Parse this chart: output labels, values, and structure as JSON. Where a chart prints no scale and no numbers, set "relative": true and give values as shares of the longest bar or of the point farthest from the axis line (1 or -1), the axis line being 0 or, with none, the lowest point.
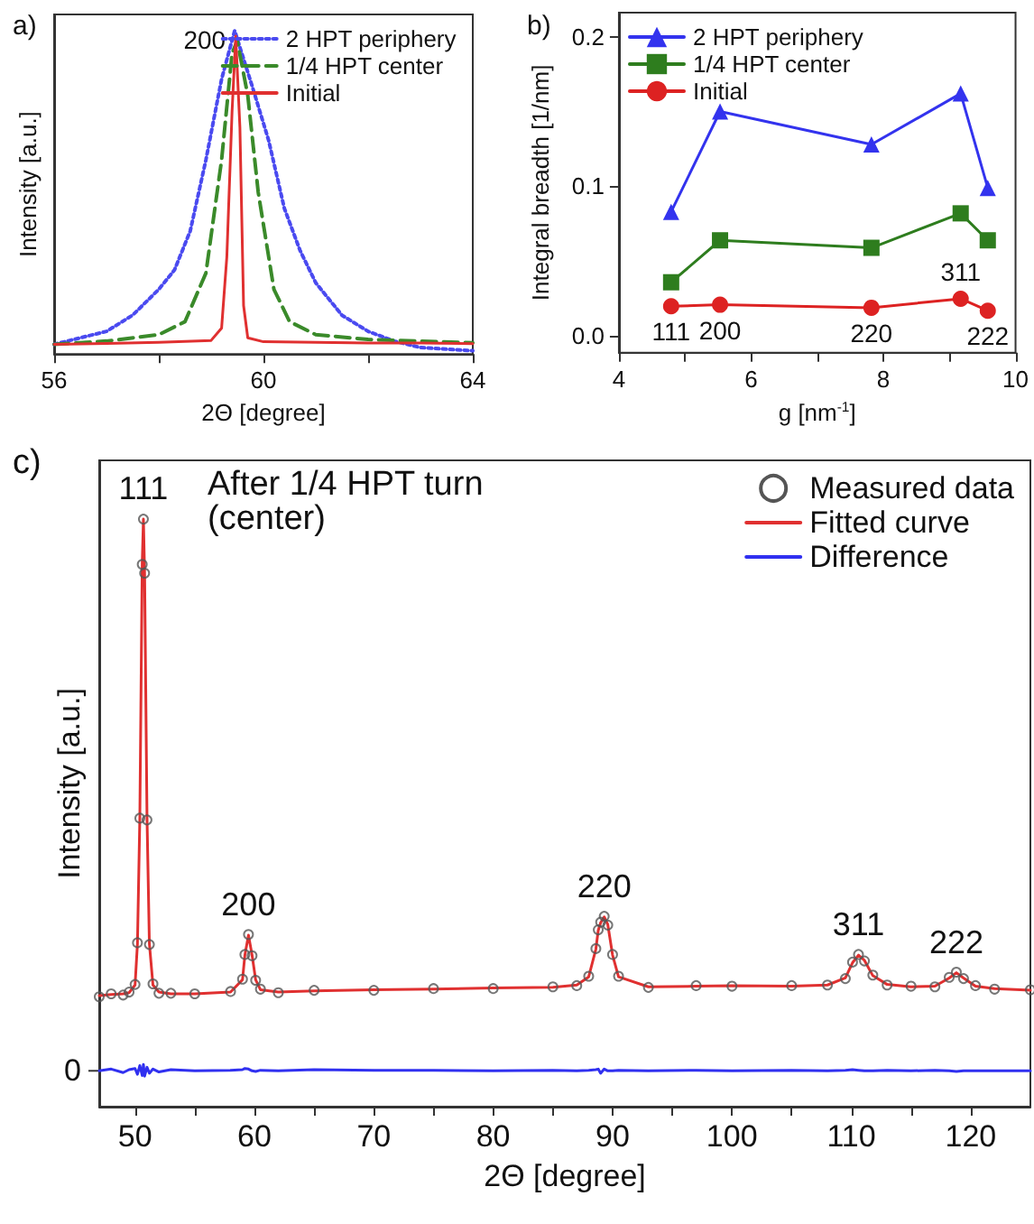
{
  "chart_data": [
    {
      "type": "line",
      "title": "a)",
      "xlabel": "2Θ [degree]",
      "ylabel": "Intensity [a.u.]",
      "relative": true,
      "xlim": [
        56,
        64
      ],
      "xticks": [
        56,
        {
          "value": 58,
          "label": null
        },
        60,
        {
          "value": 62,
          "label": null
        },
        64
      ],
      "legend": "top right",
      "annotations": [
        {
          "text": "200",
          "x": 59.45,
          "y": 1.0
        }
      ],
      "series": [
        {
          "name": "2 HPT periphery",
          "color": "#4a4af0",
          "line_style": "dotted",
          "x": [
            56,
            56.5,
            57,
            57.5,
            58,
            58.3,
            58.6,
            58.9,
            59.2,
            59.45,
            59.8,
            60.1,
            60.4,
            60.7,
            61,
            61.5,
            62,
            62.5,
            63,
            64
          ],
          "values": [
            0.03,
            0.05,
            0.07,
            0.12,
            0.2,
            0.26,
            0.38,
            0.6,
            0.85,
            1.0,
            0.82,
            0.66,
            0.45,
            0.32,
            0.22,
            0.12,
            0.07,
            0.04,
            0.02,
            0.01
          ]
        },
        {
          "name": "1/4 HPT center",
          "color": "#3a8a2a",
          "line_style": "dashed",
          "x": [
            56,
            57,
            58,
            58.5,
            58.9,
            59.2,
            59.4,
            59.5,
            59.7,
            59.9,
            60.2,
            60.5,
            61,
            62,
            63,
            64
          ],
          "values": [
            0.03,
            0.04,
            0.06,
            0.1,
            0.25,
            0.6,
            0.93,
            0.968,
            0.8,
            0.5,
            0.2,
            0.1,
            0.06,
            0.045,
            0.04,
            0.035
          ]
        },
        {
          "name": "Initial",
          "color": "#e03030",
          "line_style": "solid",
          "x": [
            56,
            57,
            58,
            59,
            59.2,
            59.3,
            59.4,
            59.47,
            59.55,
            59.62,
            59.7,
            60,
            61,
            62,
            63,
            64
          ],
          "values": [
            0.03,
            0.033,
            0.036,
            0.042,
            0.08,
            0.3,
            0.75,
            0.983,
            0.7,
            0.15,
            0.05,
            0.038,
            0.036,
            0.034,
            0.034,
            0.032
          ]
        }
      ]
    },
    {
      "type": "line",
      "title": "b)",
      "xlabel": "g [nm$^{-1}$]",
      "ylabel": "Integral breadth [1/nm]",
      "xlim": [
        4,
        10
      ],
      "xticks": [
        4,
        {
          "value": 5,
          "label": null
        },
        6,
        {
          "value": 7,
          "label": null
        },
        8,
        {
          "value": 9,
          "label": null
        },
        10
      ],
      "ylim": [
        -0.011,
        0.216
      ],
      "yticks": [
        {
          "value": 0,
          "label": "0.0"
        },
        0.1,
        0.2
      ],
      "legend": "top left",
      "x": [
        4.79,
        5.53,
        7.82,
        9.17,
        9.58
      ],
      "annotations": [
        {
          "text": "111",
          "x": 4.79,
          "y": 0.02
        },
        {
          "text": "200",
          "x": 5.53,
          "y": 0.021
        },
        {
          "text": "220",
          "x": 7.82,
          "y": 0.019
        },
        {
          "text": "311",
          "x": 9.17,
          "y": 0.025
        },
        {
          "text": "222",
          "x": 9.58,
          "y": 0.017
        }
      ],
      "series": [
        {
          "name": "2 HPT periphery",
          "color": "#3333ee",
          "marker": "triangle",
          "values": [
            0.083,
            0.15,
            0.128,
            0.162,
            0.099
          ]
        },
        {
          "name": "1/4 HPT center",
          "color": "#2e7d1e",
          "marker": "square",
          "values": [
            0.036,
            0.064,
            0.059,
            0.082,
            0.064
          ]
        },
        {
          "name": "Initial",
          "color": "#dd2222",
          "marker": "circle",
          "values": [
            0.02,
            0.021,
            0.019,
            0.025,
            0.017
          ]
        }
      ]
    },
    {
      "type": "line",
      "title": "c)",
      "xlabel": "2Θ [degree]",
      "ylabel": "Intensity [a.u.]",
      "relative": true,
      "xlim": [
        47,
        125
      ],
      "xticks": [
        50,
        {
          "value": 55,
          "label": null
        },
        60,
        {
          "value": 65,
          "label": null
        },
        70,
        {
          "value": 75,
          "label": null
        },
        80,
        {
          "value": 85,
          "label": null
        },
        90,
        {
          "value": 95,
          "label": null
        },
        100,
        {
          "value": 105,
          "label": null
        },
        110,
        {
          "value": 115,
          "label": null
        },
        120
      ],
      "ref_lines": [
        {
          "axis": "y",
          "value": 0.061,
          "label": "0"
        }
      ],
      "legend": "top right",
      "x": [
        47,
        48,
        49,
        49.5,
        50,
        50.2,
        50.4,
        50.6,
        50.7,
        50.8,
        51,
        51.2,
        51.5,
        52,
        53,
        55,
        58,
        59,
        59.2,
        59.5,
        59.8,
        60.1,
        60.5,
        62,
        65,
        70,
        75,
        80,
        85,
        87,
        88,
        88.6,
        88.8,
        89,
        89.3,
        89.6,
        90,
        90.5,
        93,
        97,
        100,
        105,
        108,
        109.5,
        110.1,
        110.6,
        111.1,
        111.8,
        113,
        115,
        117,
        118.2,
        118.8,
        119.4,
        120.4,
        122,
        125
      ],
      "annotations": [
        "After 1/4 HPT turn\n(center)",
        {
          "text": "111",
          "x": 50.7,
          "y": 1.0
        },
        {
          "text": "200",
          "x": 59.5,
          "y": 0.292
        },
        {
          "text": "220",
          "x": 89.3,
          "y": 0.323
        },
        {
          "text": "311",
          "x": 110.6,
          "y": 0.258
        },
        {
          "text": "222",
          "x": 118.8,
          "y": 0.228
        }
      ],
      "series": [
        {
          "name": "Measured data",
          "type": "scatter",
          "color": "#555555",
          "marker": "circle",
          "values": [
            0.187,
            0.192,
            0.19,
            0.195,
            0.208,
            0.279,
            0.491,
            0.923,
            1.0,
            0.908,
            0.488,
            0.276,
            0.209,
            0.193,
            0.193,
            0.192,
            0.196,
            0.217,
            0.259,
            0.293,
            0.257,
            0.215,
            0.2,
            0.194,
            0.198,
            0.198,
            0.201,
            0.201,
            0.204,
            0.206,
            0.222,
            0.269,
            0.301,
            0.314,
            0.324,
            0.309,
            0.259,
            0.222,
            0.203,
            0.206,
            0.205,
            0.206,
            0.207,
            0.218,
            0.246,
            0.259,
            0.248,
            0.224,
            0.207,
            0.205,
            0.204,
            0.22,
            0.229,
            0.218,
            0.206,
            0.2,
            0.199
          ]
        },
        {
          "name": "Fitted curve",
          "color": "#e03030",
          "marker": "none",
          "values": [
            0.189,
            0.191,
            0.192,
            0.194,
            0.207,
            0.277,
            0.493,
            0.925,
            1.0,
            0.906,
            0.493,
            0.277,
            0.207,
            0.195,
            0.192,
            0.192,
            0.195,
            0.216,
            0.258,
            0.292,
            0.258,
            0.216,
            0.199,
            0.195,
            0.197,
            0.199,
            0.2,
            0.202,
            0.203,
            0.207,
            0.221,
            0.268,
            0.3,
            0.313,
            0.323,
            0.31,
            0.258,
            0.221,
            0.204,
            0.205,
            0.206,
            0.205,
            0.207,
            0.219,
            0.245,
            0.258,
            0.249,
            0.223,
            0.208,
            0.204,
            0.205,
            0.219,
            0.228,
            0.219,
            0.205,
            0.201,
            0.198
          ]
        },
        {
          "name": "Difference",
          "color": "#3030f0",
          "marker": "none",
          "values": [
            0.061,
            0.064,
            0.058,
            0.063,
            0.065,
            0.055,
            0.07,
            0.053,
            0.072,
            0.052,
            0.067,
            0.057,
            0.064,
            0.059,
            0.063,
            0.061,
            0.062,
            0.063,
            0.065,
            0.064,
            0.061,
            0.06,
            0.062,
            0.061,
            0.063,
            0.062,
            0.062,
            0.061,
            0.062,
            0.061,
            0.062,
            0.063,
            0.064,
            0.057,
            0.064,
            0.061,
            0.061,
            0.062,
            0.061,
            0.062,
            0.061,
            0.062,
            0.061,
            0.062,
            0.063,
            0.062,
            0.061,
            0.061,
            0.062,
            0.061,
            0.062,
            0.061,
            0.06,
            0.061,
            0.061,
            0.061,
            0.061
          ]
        }
      ]
    }
  ]
}
